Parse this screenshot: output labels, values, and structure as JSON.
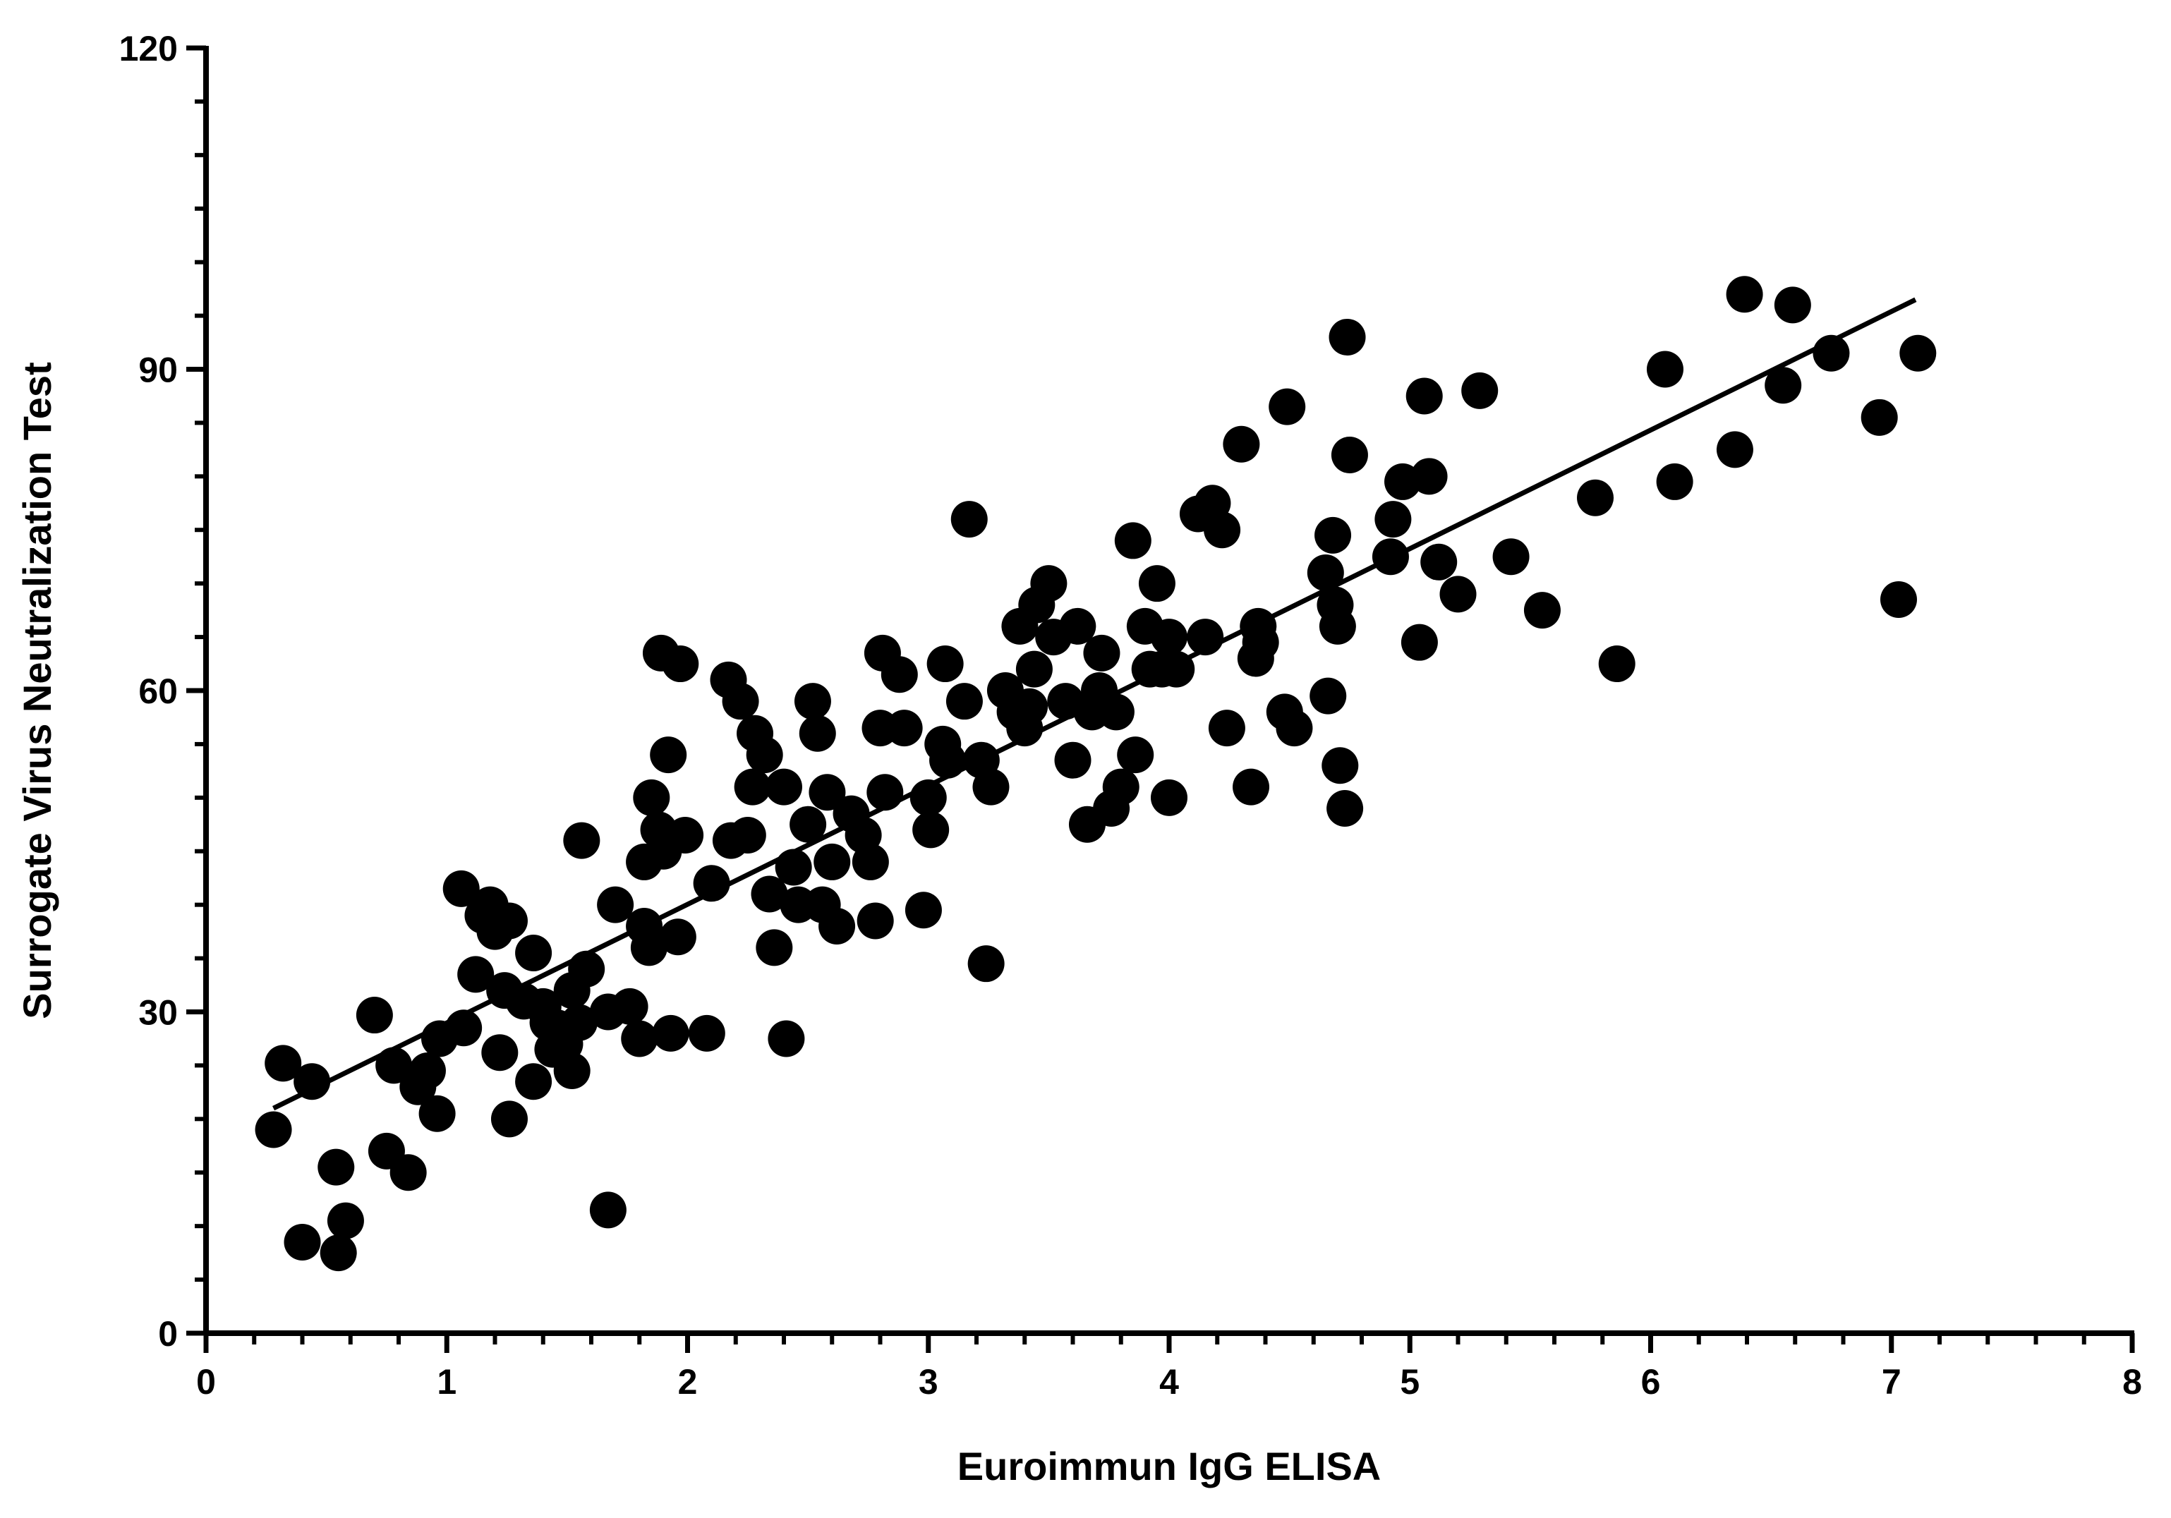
{
  "chart_data": {
    "type": "scatter",
    "xlabel": "Euroimmun IgG ELISA",
    "ylabel": "Surrogate Virus Neutralization Test",
    "xlim": [
      0,
      8
    ],
    "ylim": [
      0,
      120
    ],
    "x_ticks": [
      "0",
      "1",
      "2",
      "3",
      "4",
      "5",
      "6",
      "7",
      "8"
    ],
    "y_ticks": [
      "0",
      "30",
      "60",
      "90",
      "120"
    ],
    "grid": false,
    "colors": {
      "points": "#000000",
      "axes": "#000000",
      "line": "#000000"
    },
    "regression_line": {
      "x": [
        0.28,
        7.1
      ],
      "y": [
        21.0,
        96.5
      ]
    },
    "points": [
      [
        0.28,
        19.0
      ],
      [
        0.32,
        25.2
      ],
      [
        0.4,
        8.5
      ],
      [
        0.44,
        23.5
      ],
      [
        0.54,
        15.5
      ],
      [
        0.55,
        7.5
      ],
      [
        0.58,
        10.5
      ],
      [
        0.7,
        29.7
      ],
      [
        0.75,
        17.0
      ],
      [
        0.78,
        25.0
      ],
      [
        0.84,
        15.0
      ],
      [
        0.88,
        23.0
      ],
      [
        0.92,
        24.5
      ],
      [
        0.96,
        20.5
      ],
      [
        0.97,
        27.5
      ],
      [
        1.06,
        41.5
      ],
      [
        1.07,
        28.5
      ],
      [
        1.12,
        33.5
      ],
      [
        1.15,
        39.0
      ],
      [
        1.18,
        40.0
      ],
      [
        1.2,
        37.5
      ],
      [
        1.22,
        26.2
      ],
      [
        1.24,
        32.0
      ],
      [
        1.26,
        38.5
      ],
      [
        1.26,
        20.0
      ],
      [
        1.32,
        31.0
      ],
      [
        1.36,
        23.5
      ],
      [
        1.36,
        35.5
      ],
      [
        1.4,
        30.5
      ],
      [
        1.42,
        29.0
      ],
      [
        1.44,
        26.5
      ],
      [
        1.46,
        28.5
      ],
      [
        1.49,
        27.0
      ],
      [
        1.52,
        24.5
      ],
      [
        1.52,
        32.0
      ],
      [
        1.55,
        29.0
      ],
      [
        1.56,
        46.0
      ],
      [
        1.58,
        34.0
      ],
      [
        1.67,
        11.5
      ],
      [
        1.67,
        30.0
      ],
      [
        1.7,
        40.0
      ],
      [
        1.76,
        30.5
      ],
      [
        1.8,
        27.5
      ],
      [
        1.82,
        44.0
      ],
      [
        1.82,
        38.0
      ],
      [
        1.84,
        36.0
      ],
      [
        1.85,
        50.0
      ],
      [
        1.88,
        47.0
      ],
      [
        1.89,
        63.5
      ],
      [
        1.9,
        45.0
      ],
      [
        1.92,
        54.0
      ],
      [
        1.93,
        28.0
      ],
      [
        1.96,
        37.0
      ],
      [
        1.97,
        62.5
      ],
      [
        1.99,
        46.5
      ],
      [
        2.08,
        28.0
      ],
      [
        2.1,
        42.0
      ],
      [
        2.17,
        61.0
      ],
      [
        2.18,
        46.0
      ],
      [
        2.22,
        59.0
      ],
      [
        2.25,
        46.5
      ],
      [
        2.27,
        51.0
      ],
      [
        2.28,
        56.0
      ],
      [
        2.32,
        54.0
      ],
      [
        2.34,
        41.0
      ],
      [
        2.36,
        36.0
      ],
      [
        2.4,
        51.0
      ],
      [
        2.41,
        27.5
      ],
      [
        2.44,
        43.5
      ],
      [
        2.46,
        40.0
      ],
      [
        2.5,
        47.5
      ],
      [
        2.52,
        59.0
      ],
      [
        2.54,
        56.0
      ],
      [
        2.56,
        40.0
      ],
      [
        2.58,
        50.5
      ],
      [
        2.6,
        44.0
      ],
      [
        2.62,
        38.0
      ],
      [
        2.68,
        48.5
      ],
      [
        2.73,
        46.5
      ],
      [
        2.76,
        44.0
      ],
      [
        2.78,
        38.5
      ],
      [
        2.8,
        56.5
      ],
      [
        2.81,
        63.5
      ],
      [
        2.82,
        50.5
      ],
      [
        2.88,
        61.5
      ],
      [
        2.9,
        56.5
      ],
      [
        2.98,
        39.5
      ],
      [
        3.0,
        50.0
      ],
      [
        3.01,
        47.0
      ],
      [
        3.06,
        55.0
      ],
      [
        3.07,
        62.5
      ],
      [
        3.08,
        53.5
      ],
      [
        3.15,
        59.0
      ],
      [
        3.17,
        76.0
      ],
      [
        3.22,
        53.5
      ],
      [
        3.24,
        34.5
      ],
      [
        3.26,
        51.0
      ],
      [
        3.32,
        60.0
      ],
      [
        3.36,
        58.0
      ],
      [
        3.38,
        66.0
      ],
      [
        3.4,
        56.5
      ],
      [
        3.42,
        58.5
      ],
      [
        3.44,
        62.0
      ],
      [
        3.45,
        68.0
      ],
      [
        3.5,
        70.0
      ],
      [
        3.52,
        65.0
      ],
      [
        3.57,
        59.0
      ],
      [
        3.6,
        53.5
      ],
      [
        3.62,
        66.0
      ],
      [
        3.66,
        47.5
      ],
      [
        3.68,
        58.0
      ],
      [
        3.71,
        60.0
      ],
      [
        3.72,
        63.5
      ],
      [
        3.76,
        49.0
      ],
      [
        3.78,
        58.0
      ],
      [
        3.8,
        51.0
      ],
      [
        3.85,
        74.0
      ],
      [
        3.86,
        54.0
      ],
      [
        3.9,
        66.0
      ],
      [
        3.92,
        62.0
      ],
      [
        3.95,
        70.0
      ],
      [
        3.97,
        62.0
      ],
      [
        4.0,
        50.0
      ],
      [
        4.0,
        65.0
      ],
      [
        4.03,
        62.0
      ],
      [
        4.12,
        76.5
      ],
      [
        4.15,
        65.0
      ],
      [
        4.18,
        77.5
      ],
      [
        4.22,
        75.0
      ],
      [
        4.24,
        56.5
      ],
      [
        4.3,
        83.0
      ],
      [
        4.34,
        51.0
      ],
      [
        4.36,
        63.0
      ],
      [
        4.37,
        66.0
      ],
      [
        4.38,
        64.5
      ],
      [
        4.48,
        58.0
      ],
      [
        4.49,
        86.5
      ],
      [
        4.52,
        56.5
      ],
      [
        4.65,
        71.0
      ],
      [
        4.66,
        59.5
      ],
      [
        4.68,
        74.5
      ],
      [
        4.69,
        68.0
      ],
      [
        4.7,
        66.0
      ],
      [
        4.71,
        53.0
      ],
      [
        4.73,
        49.0
      ],
      [
        4.74,
        93.0
      ],
      [
        4.75,
        82.0
      ],
      [
        4.92,
        72.5
      ],
      [
        4.93,
        76.0
      ],
      [
        4.97,
        79.5
      ],
      [
        5.04,
        64.5
      ],
      [
        5.06,
        87.5
      ],
      [
        5.08,
        80.0
      ],
      [
        5.12,
        72.0
      ],
      [
        5.2,
        69.0
      ],
      [
        5.29,
        88.0
      ],
      [
        5.42,
        72.5
      ],
      [
        5.55,
        67.5
      ],
      [
        5.77,
        78.0
      ],
      [
        5.86,
        62.5
      ],
      [
        6.06,
        90.0
      ],
      [
        6.1,
        79.5
      ],
      [
        6.35,
        82.5
      ],
      [
        6.39,
        97.0
      ],
      [
        6.55,
        88.5
      ],
      [
        6.59,
        96.0
      ],
      [
        6.75,
        91.5
      ],
      [
        6.95,
        85.5
      ],
      [
        7.03,
        68.5
      ],
      [
        7.11,
        91.5
      ]
    ]
  }
}
